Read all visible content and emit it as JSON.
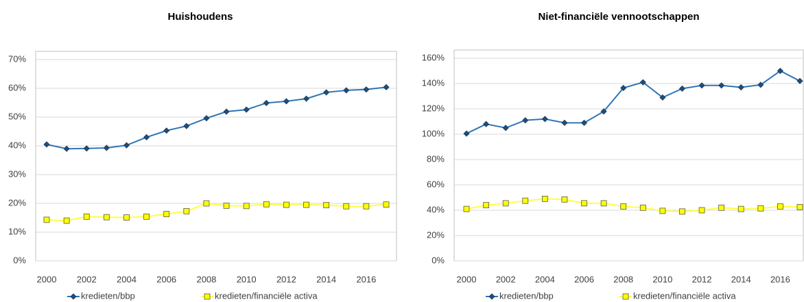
{
  "chart_data": [
    {
      "type": "line",
      "title": "Huishoudens",
      "x": [
        2000,
        2001,
        2002,
        2003,
        2004,
        2005,
        2006,
        2007,
        2008,
        2009,
        2010,
        2011,
        2012,
        2013,
        2014,
        2015,
        2016,
        2017
      ],
      "xlim": [
        2000,
        2017
      ],
      "xticks": [
        2000,
        2002,
        2004,
        2006,
        2008,
        2010,
        2012,
        2014,
        2016
      ],
      "ylim": [
        0,
        70
      ],
      "yticks": [
        {
          "value": 0,
          "label": "0%"
        },
        {
          "value": 10,
          "label": "10%"
        },
        {
          "value": 20,
          "label": "20%"
        },
        {
          "value": 30,
          "label": "30%"
        },
        {
          "value": 40,
          "label": "40%"
        },
        {
          "value": 50,
          "label": "50%"
        },
        {
          "value": 60,
          "label": "60%"
        },
        {
          "value": 70,
          "label": "70%"
        }
      ],
      "grid": true,
      "series": [
        {
          "name": "kredieten/bbp",
          "color": "#2e75b6",
          "marker": "diamond",
          "marker_color": "#1f4e79",
          "values": [
            40.5,
            39,
            39.1,
            39.3,
            40.2,
            43,
            45.3,
            46.9,
            49.6,
            51.9,
            52.6,
            54.9,
            55.5,
            56.4,
            58.6,
            59.3,
            59.6,
            60.4
          ]
        },
        {
          "name": "kredieten/financiële activa",
          "color": "#ffff44",
          "marker": "square",
          "marker_color": "#ffff00",
          "values": [
            14.3,
            14,
            15.4,
            15.2,
            15.1,
            15.4,
            16.3,
            17.3,
            20,
            19.2,
            19.1,
            19.7,
            19.5,
            19.5,
            19.4,
            19,
            19,
            19.6
          ]
        }
      ]
    },
    {
      "type": "line",
      "title": "Niet-financiële vennootschappen",
      "x": [
        2000,
        2001,
        2002,
        2003,
        2004,
        2005,
        2006,
        2007,
        2008,
        2009,
        2010,
        2011,
        2012,
        2013,
        2014,
        2015,
        2016,
        2017
      ],
      "xlim": [
        2000,
        2017
      ],
      "xticks": [
        2000,
        2002,
        2004,
        2006,
        2008,
        2010,
        2012,
        2014,
        2016
      ],
      "ylim": [
        0,
        160
      ],
      "yticks": [
        {
          "value": 0,
          "label": "0%"
        },
        {
          "value": 20,
          "label": "20%"
        },
        {
          "value": 40,
          "label": "40%"
        },
        {
          "value": 60,
          "label": "60%"
        },
        {
          "value": 80,
          "label": "80%"
        },
        {
          "value": 100,
          "label": "100%"
        },
        {
          "value": 120,
          "label": "120%"
        },
        {
          "value": 140,
          "label": "140%"
        },
        {
          "value": 160,
          "label": "160%"
        }
      ],
      "grid": true,
      "series": [
        {
          "name": "kredieten/bbp",
          "color": "#2e75b6",
          "marker": "diamond",
          "marker_color": "#1f4e79",
          "values": [
            100.5,
            108,
            105,
            111,
            112,
            109,
            109,
            118,
            136.5,
            141,
            129,
            136,
            138.5,
            138.5,
            137,
            139,
            150,
            142
          ]
        },
        {
          "name": "kredieten/financiële activa",
          "color": "#ffff44",
          "marker": "square",
          "marker_color": "#ffff00",
          "values": [
            41,
            44,
            45.5,
            47.5,
            49,
            48.5,
            45.5,
            45.5,
            43,
            42,
            39.5,
            39,
            40,
            42,
            41,
            41.5,
            43,
            42.5
          ]
        }
      ]
    }
  ]
}
